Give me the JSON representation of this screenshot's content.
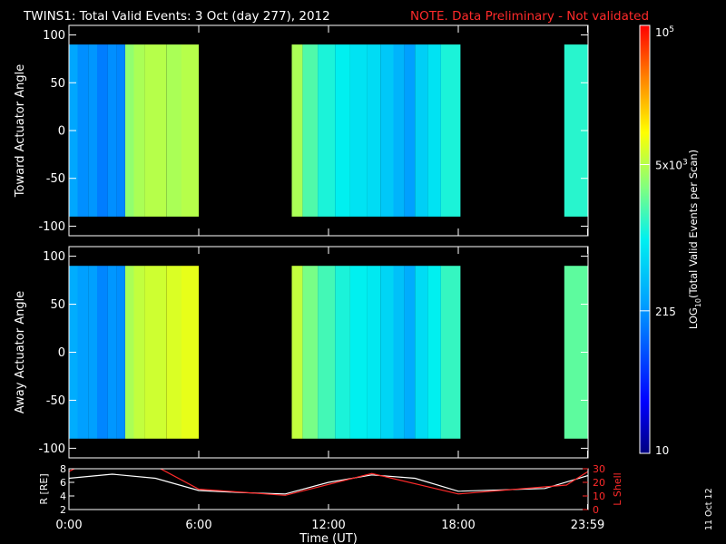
{
  "header": {
    "title": "TWINS1: Total Valid Events:  3 Oct (day 277), 2012",
    "note": "NOTE. Data Preliminary - Not validated"
  },
  "side_date": "11 Oct 12",
  "colors": {
    "note": "#ff2a2a",
    "axes": "#ffffff",
    "background": "#000000"
  },
  "chart_data": [
    {
      "type": "heatmap",
      "ylabel": "Toward Actuator Angle",
      "ylim": [
        -110,
        110
      ],
      "y_ticks": [
        "100",
        "50",
        "0",
        "-50",
        "-100"
      ],
      "x_range_hours": [
        0,
        24
      ],
      "data_y_range": [
        -90,
        90
      ],
      "coverage_hours": [
        [
          0,
          6.0
        ],
        [
          10.3,
          18.1
        ],
        [
          22.9,
          24
        ]
      ],
      "segments_hours": [
        0,
        0.4,
        0.9,
        1.3,
        1.8,
        2.2,
        2.6,
        3.0,
        3.5,
        4.5,
        5.2,
        6.0,
        10.3,
        10.8,
        11.5,
        12.3,
        13.0,
        13.8,
        14.4,
        15.0,
        15.5,
        16.0,
        16.6,
        17.2,
        18.1,
        22.9,
        24
      ],
      "log_counts": [
        2.45,
        2.3,
        2.35,
        2.2,
        2.3,
        2.25,
        3.55,
        3.65,
        3.7,
        3.65,
        3.7,
        null,
        3.65,
        3.3,
        3.1,
        3.0,
        2.9,
        2.85,
        2.7,
        2.55,
        2.4,
        2.75,
        2.9,
        3.1,
        null,
        3.15
      ]
    },
    {
      "type": "heatmap",
      "ylabel": "Away Actuator Angle",
      "ylim": [
        -110,
        110
      ],
      "y_ticks": [
        "100",
        "50",
        "0",
        "-50",
        "-100"
      ],
      "x_range_hours": [
        0,
        24
      ],
      "data_y_range": [
        -90,
        90
      ],
      "coverage_hours": [
        [
          0,
          6.0
        ],
        [
          10.3,
          18.1
        ],
        [
          22.9,
          24
        ]
      ],
      "segments_hours": [
        0,
        0.4,
        0.9,
        1.3,
        1.8,
        2.2,
        2.6,
        3.0,
        3.5,
        4.5,
        5.2,
        6.0,
        10.3,
        10.8,
        11.5,
        12.3,
        13.0,
        13.8,
        14.4,
        15.0,
        15.5,
        16.0,
        16.6,
        17.2,
        18.1,
        22.9,
        24
      ],
      "log_counts": [
        2.5,
        2.4,
        2.4,
        2.25,
        2.35,
        2.3,
        3.65,
        3.75,
        3.8,
        3.85,
        3.9,
        null,
        3.75,
        3.45,
        3.25,
        3.1,
        3.0,
        2.95,
        2.8,
        2.65,
        2.5,
        2.85,
        3.0,
        3.2,
        null,
        3.35
      ]
    },
    {
      "type": "line",
      "xlabel": "Time (UT)",
      "x_ticks": [
        "0:00",
        "6:00",
        "12:00",
        "18:00",
        "23:59"
      ],
      "x_tick_hours": [
        0,
        6,
        12,
        18,
        23.98
      ],
      "ylabel_left": "R [RE]",
      "ylim_left": [
        2,
        8
      ],
      "y_ticks_left": [
        "8",
        "6",
        "4",
        "2"
      ],
      "ylabel_right": "L Shell",
      "ylim_right": [
        0,
        30
      ],
      "y_ticks_right": [
        "30",
        "20",
        "10",
        "0"
      ],
      "series": [
        {
          "axis": "left",
          "color": "#ffffff",
          "x": [
            0,
            2,
            4,
            6,
            8,
            10,
            12,
            14,
            16,
            18,
            20,
            22,
            24
          ],
          "y": [
            6.6,
            7.2,
            6.6,
            4.8,
            4.5,
            4.3,
            6.0,
            7.1,
            6.6,
            4.7,
            4.9,
            5.1,
            7.0
          ]
        },
        {
          "axis": "right",
          "color": "#ff2a2a",
          "x": [
            0,
            0.5,
            4,
            6,
            10,
            14,
            18,
            23,
            24
          ],
          "y": [
            28,
            32,
            32,
            15,
            10.5,
            26.5,
            11.5,
            18,
            28
          ]
        }
      ]
    }
  ],
  "colorbar": {
    "label": "LOG10(Total Valid Events per Scan)",
    "label_base": "LOG",
    "label_sub": "10",
    "label_rest": "(Total Valid Events per Scan)",
    "range_log": [
      1,
      5
    ],
    "tick_labels": [
      {
        "value_log": 5,
        "text": "10",
        "sup": "5"
      },
      {
        "value_log": 3.699,
        "text": "5x10",
        "sup": "3"
      },
      {
        "value_log": 2.332,
        "text": "215",
        "sup": ""
      },
      {
        "value_log": 1,
        "text": "10",
        "sup": ""
      }
    ]
  }
}
